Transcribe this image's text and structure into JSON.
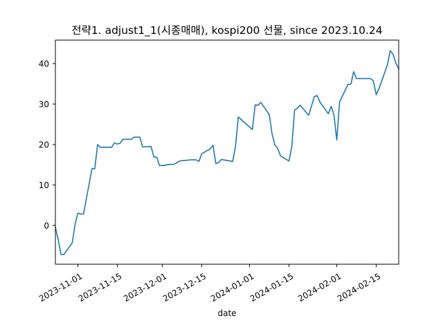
{
  "chart_data": {
    "type": "line",
    "title": "전략1. adjust1_1(시종매매), kospi200 선물, since 2023.10.24",
    "xlabel": "date",
    "ylabel": "",
    "grid": false,
    "legend": "none",
    "line_color": "#1f77b4",
    "xlim": [
      "2023-10-24",
      "2024-02-23"
    ],
    "ylim": [
      -9.6,
      45.8
    ],
    "x_ticks": [
      {
        "date": "2023-11-01",
        "label": "2023-11-01"
      },
      {
        "date": "2023-11-15",
        "label": "2023-11-15"
      },
      {
        "date": "2023-12-01",
        "label": "2023-12-01"
      },
      {
        "date": "2023-12-15",
        "label": "2023-12-15"
      },
      {
        "date": "2024-01-01",
        "label": "2024-01-01"
      },
      {
        "date": "2024-01-15",
        "label": "2024-01-15"
      },
      {
        "date": "2024-02-01",
        "label": "2024-02-01"
      },
      {
        "date": "2024-02-15",
        "label": "2024-02-15"
      }
    ],
    "y_ticks": [
      {
        "value": 0,
        "label": "0"
      },
      {
        "value": 10,
        "label": "10"
      },
      {
        "value": 20,
        "label": "20"
      },
      {
        "value": 30,
        "label": "30"
      },
      {
        "value": 40,
        "label": "40"
      }
    ],
    "series": [
      {
        "points": [
          [
            "2023-10-24",
            -0.5
          ],
          [
            "2023-10-25",
            -3.5
          ],
          [
            "2023-10-26",
            -7.2
          ],
          [
            "2023-10-27",
            -7.2
          ],
          [
            "2023-10-30",
            -4.3
          ],
          [
            "2023-10-31",
            0.3
          ],
          [
            "2023-11-01",
            3.0
          ],
          [
            "2023-11-02",
            2.8
          ],
          [
            "2023-11-03",
            2.8
          ],
          [
            "2023-11-06",
            14.0
          ],
          [
            "2023-11-07",
            14.0
          ],
          [
            "2023-11-08",
            20.0
          ],
          [
            "2023-11-09",
            19.3
          ],
          [
            "2023-11-10",
            19.3
          ],
          [
            "2023-11-13",
            19.3
          ],
          [
            "2023-11-14",
            20.4
          ],
          [
            "2023-11-15",
            20.1
          ],
          [
            "2023-11-16",
            20.3
          ],
          [
            "2023-11-17",
            21.3
          ],
          [
            "2023-11-20",
            21.3
          ],
          [
            "2023-11-21",
            21.8
          ],
          [
            "2023-11-22",
            21.8
          ],
          [
            "2023-11-23",
            21.8
          ],
          [
            "2023-11-24",
            19.4
          ],
          [
            "2023-11-27",
            19.5
          ],
          [
            "2023-11-28",
            16.9
          ],
          [
            "2023-11-29",
            16.9
          ],
          [
            "2023-11-30",
            14.8
          ],
          [
            "2023-12-01",
            14.8
          ],
          [
            "2023-12-04",
            15.1
          ],
          [
            "2023-12-05",
            15.1
          ],
          [
            "2023-12-06",
            15.4
          ],
          [
            "2023-12-07",
            15.9
          ],
          [
            "2023-12-08",
            16.0
          ],
          [
            "2023-12-11",
            16.2
          ],
          [
            "2023-12-12",
            16.2
          ],
          [
            "2023-12-13",
            16.2
          ],
          [
            "2023-12-14",
            15.8
          ],
          [
            "2023-12-15",
            17.7
          ],
          [
            "2023-12-18",
            18.9
          ],
          [
            "2023-12-19",
            19.8
          ],
          [
            "2023-12-20",
            15.3
          ],
          [
            "2023-12-21",
            15.5
          ],
          [
            "2023-12-22",
            16.3
          ],
          [
            "2023-12-26",
            15.8
          ],
          [
            "2023-12-27",
            19.5
          ],
          [
            "2023-12-28",
            26.8
          ],
          [
            "2024-01-02",
            23.7
          ],
          [
            "2024-01-03",
            29.8
          ],
          [
            "2024-01-04",
            29.7
          ],
          [
            "2024-01-05",
            30.4
          ],
          [
            "2024-01-08",
            27.4
          ],
          [
            "2024-01-09",
            22.6
          ],
          [
            "2024-01-10",
            19.9
          ],
          [
            "2024-01-11",
            19.0
          ],
          [
            "2024-01-12",
            17.2
          ],
          [
            "2024-01-15",
            15.9
          ],
          [
            "2024-01-16",
            19.4
          ],
          [
            "2024-01-17",
            28.5
          ],
          [
            "2024-01-18",
            29.0
          ],
          [
            "2024-01-19",
            29.7
          ],
          [
            "2024-01-22",
            27.2
          ],
          [
            "2024-01-23",
            29.5
          ],
          [
            "2024-01-24",
            31.8
          ],
          [
            "2024-01-25",
            32.1
          ],
          [
            "2024-01-26",
            30.5
          ],
          [
            "2024-01-29",
            27.6
          ],
          [
            "2024-01-30",
            29.4
          ],
          [
            "2024-01-31",
            27.3
          ],
          [
            "2024-02-01",
            21.1
          ],
          [
            "2024-02-02",
            30.5
          ],
          [
            "2024-02-05",
            34.9
          ],
          [
            "2024-02-06",
            34.9
          ],
          [
            "2024-02-07",
            38.0
          ],
          [
            "2024-02-08",
            36.3
          ],
          [
            "2024-02-13",
            36.3
          ],
          [
            "2024-02-14",
            35.7
          ],
          [
            "2024-02-15",
            32.3
          ],
          [
            "2024-02-16",
            33.8
          ],
          [
            "2024-02-19",
            39.7
          ],
          [
            "2024-02-20",
            43.2
          ],
          [
            "2024-02-21",
            42.3
          ],
          [
            "2024-02-22",
            40.1
          ],
          [
            "2024-02-23",
            38.7
          ]
        ]
      }
    ]
  }
}
